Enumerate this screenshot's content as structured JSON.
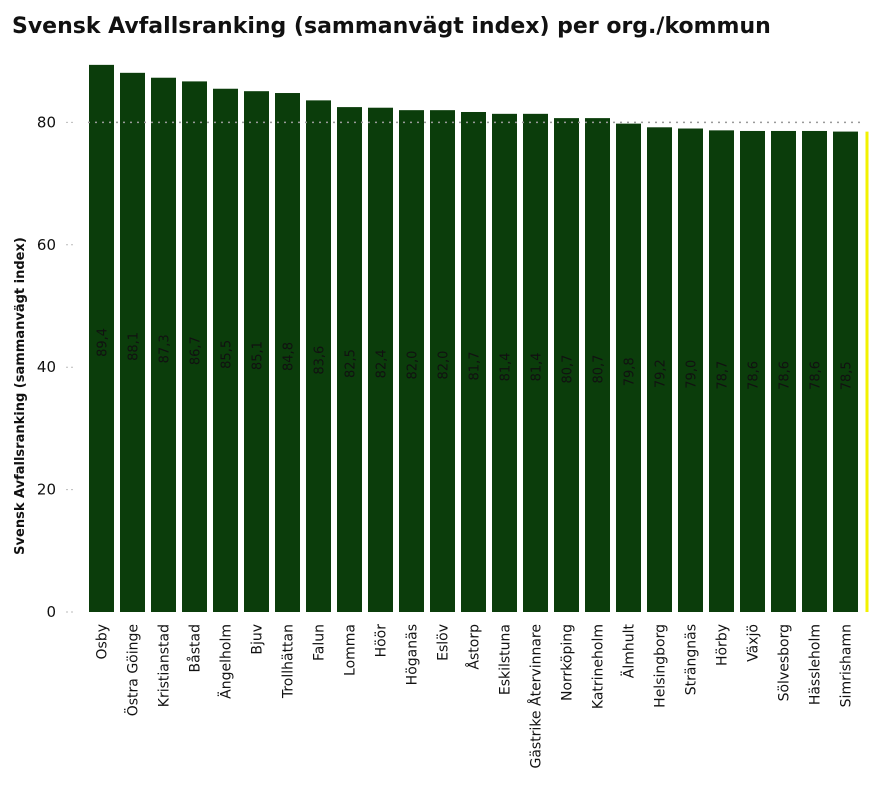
{
  "chart_data": {
    "type": "bar",
    "title": "Svensk Avfallsranking (sammanvägt index) per org./kommun",
    "xlabel": "",
    "ylabel": "Svensk Avfallsranking (sammanvägt index)",
    "ylim": [
      0,
      90
    ],
    "yticks": [
      0,
      20,
      40,
      60,
      80
    ],
    "reference_line": 80,
    "categories": [
      "Osby",
      "Östra Göinge",
      "Kristianstad",
      "Båstad",
      "Ängelholm",
      "Bjuv",
      "Trollhättan",
      "Falun",
      "Lomma",
      "Höör",
      "Höganäs",
      "Eslöv",
      "Åstorp",
      "Eskilstuna",
      "Gästrike Återvinnare",
      "Norrköping",
      "Katrineholm",
      "Älmhult",
      "Helsingborg",
      "Strängnäs",
      "Hörby",
      "Växjö",
      "Sölvesborg",
      "Hässleholm",
      "Simrishamn"
    ],
    "values": [
      89.4,
      88.1,
      87.3,
      86.7,
      85.5,
      85.1,
      84.8,
      83.6,
      82.5,
      82.4,
      82.0,
      82.0,
      81.7,
      81.4,
      81.4,
      80.7,
      80.7,
      79.8,
      79.2,
      79.0,
      78.7,
      78.6,
      78.6,
      78.6,
      78.5
    ],
    "data_labels": [
      "89,4",
      "88,1",
      "87,3",
      "86,7",
      "85,5",
      "85,1",
      "84,8",
      "83,6",
      "82,5",
      "82,4",
      "82,0",
      "82,0",
      "81,7",
      "81,4",
      "81,4",
      "80,7",
      "80,7",
      "79,8",
      "79,2",
      "79,0",
      "78,7",
      "78,6",
      "78,6",
      "78,6",
      "78,5"
    ],
    "bar_color": "#0b3d0b",
    "edge_marker_color": "#f2f200",
    "grid": false
  }
}
